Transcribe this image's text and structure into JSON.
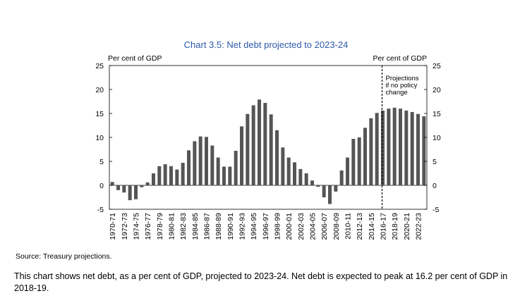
{
  "chart_data": {
    "type": "bar",
    "title": "Chart 3.5: Net debt projected to 2023-24",
    "ylabel_left": "Per cent of GDP",
    "ylabel_right": "Per cent of GDP",
    "ylim": [
      -5,
      25
    ],
    "yticks": [
      25,
      20,
      15,
      10,
      5,
      0,
      -5
    ],
    "annotation": [
      "Projections",
      "if no policy",
      "change"
    ],
    "projection_start": "2016-17",
    "tick_labels": [
      "1970-71",
      "1972-73",
      "1974-75",
      "1976-77",
      "1978-79",
      "1980-81",
      "1982-83",
      "1984-85",
      "1986-87",
      "1988-89",
      "1990-91",
      "1992-93",
      "1994-95",
      "1996-97",
      "1998-99",
      "2000-01",
      "2002-03",
      "2004-05",
      "2006-07",
      "2008-09",
      "2010-11",
      "2012-13",
      "2014-15",
      "2016-17",
      "2018-19",
      "2020-21",
      "2022-23"
    ],
    "categories": [
      "1970-71",
      "1971-72",
      "1972-73",
      "1973-74",
      "1974-75",
      "1975-76",
      "1976-77",
      "1977-78",
      "1978-79",
      "1979-80",
      "1980-81",
      "1981-82",
      "1982-83",
      "1983-84",
      "1984-85",
      "1985-86",
      "1986-87",
      "1987-88",
      "1988-89",
      "1989-90",
      "1990-91",
      "1991-92",
      "1992-93",
      "1993-94",
      "1994-95",
      "1995-96",
      "1996-97",
      "1997-98",
      "1998-99",
      "1999-00",
      "2000-01",
      "2001-02",
      "2002-03",
      "2003-04",
      "2004-05",
      "2005-06",
      "2006-07",
      "2007-08",
      "2008-09",
      "2009-10",
      "2010-11",
      "2011-12",
      "2012-13",
      "2013-14",
      "2014-15",
      "2015-16",
      "2016-17",
      "2017-18",
      "2018-19",
      "2019-20",
      "2020-21",
      "2021-22",
      "2022-23",
      "2023-24"
    ],
    "values": [
      0.7,
      -1.0,
      -1.5,
      -3.1,
      -2.9,
      -0.4,
      0.6,
      2.5,
      4.0,
      4.4,
      4.0,
      3.3,
      4.7,
      7.3,
      9.2,
      10.2,
      10.1,
      8.3,
      5.8,
      3.9,
      3.9,
      7.2,
      12.3,
      14.9,
      16.7,
      17.9,
      17.2,
      14.8,
      11.5,
      7.9,
      5.8,
      4.8,
      3.4,
      2.5,
      1.0,
      -0.3,
      -2.5,
      -3.9,
      -1.3,
      3.1,
      5.8,
      9.7,
      10.0,
      12.0,
      14.0,
      15.1,
      15.6,
      16.0,
      16.2,
      16.0,
      15.6,
      15.3,
      14.9,
      14.4
    ],
    "colors": {
      "bar": "#555555",
      "title": "#2e5aa8"
    }
  },
  "source": "Source: Treasury projections.",
  "description": "This chart shows net debt, as a per cent of GDP, projected to 2023-24. Net debt is expected to peak at 16.2 per cent of GDP in 2018-19."
}
